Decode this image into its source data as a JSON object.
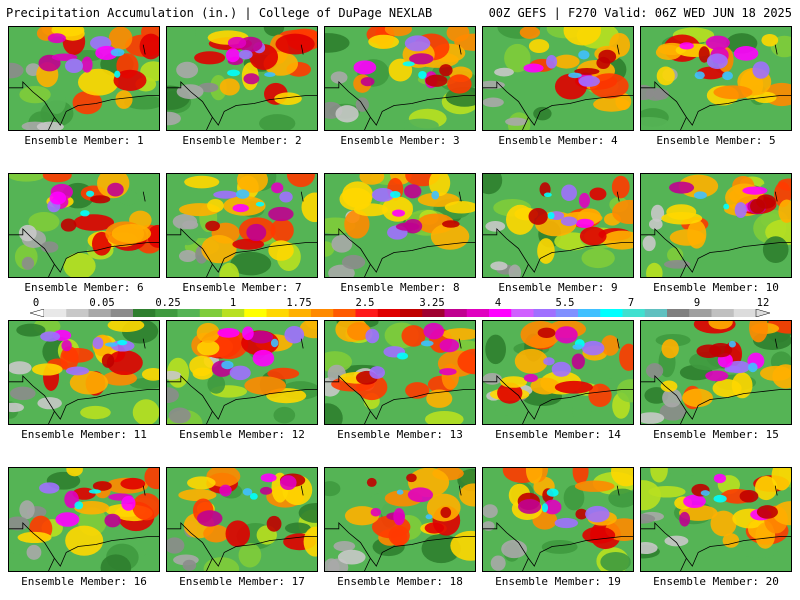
{
  "header": {
    "left": "Precipitation Accumulation (in.) | College of DuPage NEXLAB",
    "right": "00Z GEFS | F270 Valid: 06Z WED JUN 18 2025"
  },
  "scale": {
    "labels": [
      "0",
      "0.05",
      "0.25",
      "1",
      "1.75",
      "2.5",
      "3.25",
      "4",
      "5.5",
      "7",
      "9",
      "12"
    ],
    "colors": [
      "#e8e8e8",
      "#c8c8c8",
      "#a8a8a8",
      "#8c8c8c",
      "#2f7f2f",
      "#3f9a3f",
      "#55b455",
      "#7fcc3a",
      "#b8e020",
      "#ffff00",
      "#ffd700",
      "#ffb000",
      "#ff8a00",
      "#ff5a00",
      "#ff1a1a",
      "#e00000",
      "#c00000",
      "#a00030",
      "#c00090",
      "#e000c0",
      "#ff00ff",
      "#d060ff",
      "#a070ff",
      "#8090ff",
      "#40c0ff",
      "#00ffff",
      "#40e0d0",
      "#60c0c0",
      "#808080",
      "#a0a0a0",
      "#c0c0c0",
      "#dcdcdc"
    ]
  },
  "members": [
    {
      "label": "Ensemble Member: 1"
    },
    {
      "label": "Ensemble Member: 2"
    },
    {
      "label": "Ensemble Member: 3"
    },
    {
      "label": "Ensemble Member: 4"
    },
    {
      "label": "Ensemble Member: 5"
    },
    {
      "label": "Ensemble Member: 6"
    },
    {
      "label": "Ensemble Member: 7"
    },
    {
      "label": "Ensemble Member: 8"
    },
    {
      "label": "Ensemble Member: 9"
    },
    {
      "label": "Ensemble Member: 10"
    },
    {
      "label": "Ensemble Member: 11"
    },
    {
      "label": "Ensemble Member: 12"
    },
    {
      "label": "Ensemble Member: 13"
    },
    {
      "label": "Ensemble Member: 14"
    },
    {
      "label": "Ensemble Member: 15"
    },
    {
      "label": "Ensemble Member: 16"
    },
    {
      "label": "Ensemble Member: 17"
    },
    {
      "label": "Ensemble Member: 18"
    },
    {
      "label": "Ensemble Member: 19"
    },
    {
      "label": "Ensemble Member: 20"
    }
  ]
}
